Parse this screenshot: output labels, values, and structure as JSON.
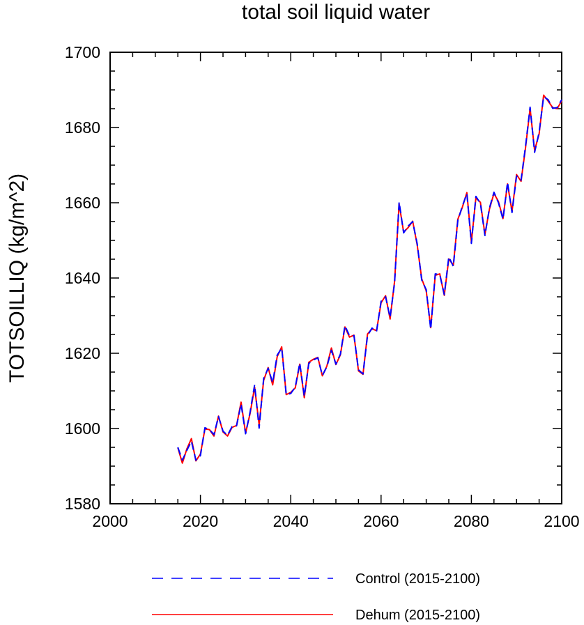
{
  "chart_data": {
    "type": "line",
    "title": "total soil liquid water",
    "xlabel": "",
    "ylabel": "TOTSOILLIQ  (kg/m^2)",
    "xlim": [
      2000,
      2100
    ],
    "ylim": [
      1580,
      1700
    ],
    "xticks": [
      2000,
      2020,
      2040,
      2060,
      2080,
      2100
    ],
    "yticks": [
      1580,
      1600,
      1620,
      1640,
      1660,
      1680,
      1700
    ],
    "x_minor_step": 5,
    "y_minor_step": 5,
    "grid": false,
    "legend_position": "bottom",
    "x": [
      2015,
      2016,
      2017,
      2018,
      2019,
      2020,
      2021,
      2022,
      2023,
      2024,
      2025,
      2026,
      2027,
      2028,
      2029,
      2030,
      2031,
      2032,
      2033,
      2034,
      2035,
      2036,
      2037,
      2038,
      2039,
      2040,
      2041,
      2042,
      2043,
      2044,
      2045,
      2046,
      2047,
      2048,
      2049,
      2050,
      2051,
      2052,
      2053,
      2054,
      2055,
      2056,
      2057,
      2058,
      2059,
      2060,
      2061,
      2062,
      2063,
      2064,
      2065,
      2066,
      2067,
      2068,
      2069,
      2070,
      2071,
      2072,
      2073,
      2074,
      2075,
      2076,
      2077,
      2078,
      2079,
      2080,
      2081,
      2082,
      2083,
      2084,
      2085,
      2086,
      2087,
      2088,
      2089,
      2090,
      2091,
      2092,
      2093,
      2094,
      2095,
      2096,
      2097,
      2098,
      2099,
      2100
    ],
    "series": [
      {
        "name": "Control (2015-2100)",
        "color": "#0000ff",
        "dash": "dashed",
        "values": [
          1595.0,
          1591.6,
          1594.2,
          1596.6,
          1591.6,
          1592.8,
          1600.2,
          1599.7,
          1598.4,
          1603.2,
          1599.3,
          1598.2,
          1600.5,
          1600.7,
          1606.5,
          1598.6,
          1604.4,
          1611.6,
          1600.1,
          1613.3,
          1616.0,
          1612.2,
          1619.5,
          1621.4,
          1609.0,
          1609.3,
          1611.0,
          1617.4,
          1608.6,
          1617.3,
          1618.2,
          1618.8,
          1614.1,
          1616.4,
          1620.8,
          1617.1,
          1619.8,
          1627.3,
          1624.7,
          1624.7,
          1615.6,
          1614.5,
          1624.7,
          1626.7,
          1625.8,
          1633.8,
          1635.0,
          1629.5,
          1638.8,
          1660.2,
          1652.0,
          1653.8,
          1655.0,
          1649.1,
          1639.5,
          1636.9,
          1626.4,
          1641.1,
          1640.9,
          1635.6,
          1645.6,
          1643.1,
          1655.3,
          1659.1,
          1662.4,
          1649.2,
          1661.7,
          1659.8,
          1651.3,
          1658.6,
          1662.8,
          1660.0,
          1655.6,
          1665.4,
          1657.4,
          1667.1,
          1666.0,
          1675.1,
          1685.4,
          1673.4,
          1678.7,
          1688.2,
          1687.4,
          1685.1,
          1685.3,
          1687.4
        ]
      },
      {
        "name": "Dehum (2015-2100)",
        "color": "#ff0000",
        "dash": "solid",
        "values": [
          1594.9,
          1590.8,
          1594.6,
          1597.3,
          1591.4,
          1593.2,
          1599.9,
          1599.7,
          1598.0,
          1603.3,
          1599.1,
          1598.0,
          1600.3,
          1600.8,
          1607.0,
          1598.8,
          1604.0,
          1611.0,
          1601.0,
          1612.8,
          1616.2,
          1611.6,
          1619.1,
          1621.7,
          1609.0,
          1609.6,
          1610.8,
          1617.1,
          1608.2,
          1617.6,
          1618.4,
          1618.9,
          1614.0,
          1616.6,
          1621.4,
          1617.0,
          1619.6,
          1627.0,
          1624.3,
          1624.8,
          1615.3,
          1614.4,
          1625.1,
          1626.5,
          1626.0,
          1633.4,
          1635.3,
          1629.1,
          1639.2,
          1659.7,
          1652.2,
          1653.4,
          1655.1,
          1648.8,
          1639.8,
          1636.6,
          1626.8,
          1640.7,
          1641.1,
          1635.4,
          1645.1,
          1643.4,
          1655.6,
          1658.8,
          1662.7,
          1649.6,
          1661.3,
          1660.1,
          1651.6,
          1658.3,
          1662.5,
          1660.3,
          1655.8,
          1665.0,
          1657.7,
          1667.5,
          1665.7,
          1674.7,
          1685.1,
          1673.9,
          1678.3,
          1688.6,
          1687.0,
          1685.3,
          1685.0,
          1687.1
        ]
      }
    ]
  }
}
